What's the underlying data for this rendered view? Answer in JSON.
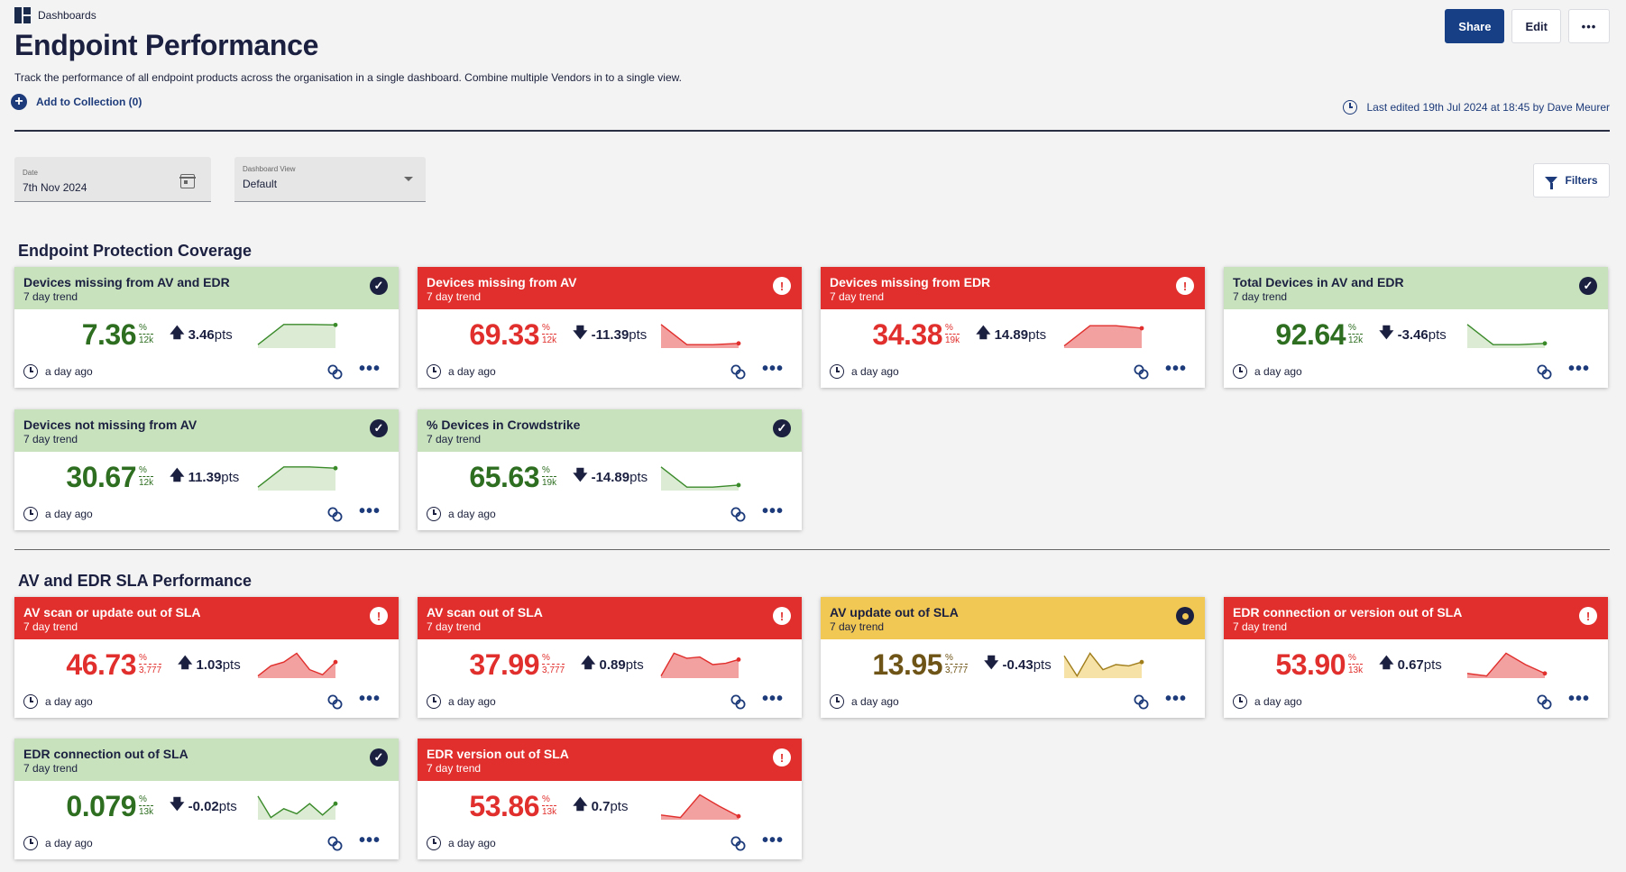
{
  "breadcrumb": "Dashboards",
  "title": "Endpoint Performance",
  "description": "Track the performance of all endpoint products across the organisation in a single dashboard. Combine multiple Vendors in to a single view.",
  "add_collection": "Add to Collection (0)",
  "buttons": {
    "share": "Share",
    "edit": "Edit",
    "more": "•••"
  },
  "last_edited": "Last edited 19th Jul 2024 at 18:45 by Dave Meurer",
  "date_field": {
    "label": "Date",
    "value": "7th Nov 2024"
  },
  "view_field": {
    "label": "Dashboard View",
    "value": "Default"
  },
  "filters_label": "Filters",
  "sections": [
    {
      "title": "Endpoint Protection Coverage"
    },
    {
      "title": "AV and EDR SLA Performance"
    }
  ],
  "card_common": {
    "subtitle": "7 day trend",
    "timestamp": "a day ago",
    "percent": "%",
    "pts": "pts",
    "more": "•••"
  },
  "cards": [
    {
      "title": "Devices missing from AV and EDR",
      "status": "ok",
      "value": "7.36",
      "denom": "12k",
      "delta": "3.46",
      "direction": "up",
      "spark": [
        0.1,
        0.9,
        0.9,
        0.88
      ]
    },
    {
      "title": "Devices missing from AV",
      "status": "bad",
      "value": "69.33",
      "denom": "12k",
      "delta": "-11.39",
      "direction": "down",
      "spark": [
        0.9,
        0.1,
        0.1,
        0.15
      ]
    },
    {
      "title": "Devices missing from EDR",
      "status": "bad",
      "value": "34.38",
      "denom": "19k",
      "delta": "14.89",
      "direction": "up",
      "spark": [
        0.05,
        0.85,
        0.85,
        0.75
      ]
    },
    {
      "title": "Total Devices in AV and EDR",
      "status": "ok",
      "value": "92.64",
      "denom": "12k",
      "delta": "-3.46",
      "direction": "down",
      "spark": [
        0.9,
        0.1,
        0.1,
        0.15
      ]
    },
    {
      "title": "Devices not missing from AV",
      "status": "ok",
      "value": "30.67",
      "denom": "12k",
      "delta": "11.39",
      "direction": "up",
      "spark": [
        0.1,
        0.9,
        0.9,
        0.85
      ]
    },
    {
      "title": "% Devices in Crowdstrike",
      "status": "ok",
      "value": "65.63",
      "denom": "19k",
      "delta": "-14.89",
      "direction": "down",
      "spark": [
        0.9,
        0.1,
        0.1,
        0.18
      ]
    },
    {
      "title": "AV scan or update out of SLA",
      "status": "bad",
      "value": "46.73",
      "denom": "3,777",
      "delta": "1.03",
      "direction": "up",
      "spark": [
        0.05,
        0.45,
        0.6,
        0.95,
        0.3,
        0.1,
        0.6
      ]
    },
    {
      "title": "AV scan out of SLA",
      "status": "bad",
      "value": "37.99",
      "denom": "3,777",
      "delta": "0.89",
      "direction": "up",
      "spark": [
        0.05,
        0.95,
        0.75,
        0.8,
        0.5,
        0.55,
        0.7
      ]
    },
    {
      "title": "AV update out of SLA",
      "status": "warn",
      "value": "13.95",
      "denom": "3,777",
      "delta": "-0.43",
      "direction": "down",
      "spark": [
        0.85,
        0.05,
        0.95,
        0.3,
        0.5,
        0.45,
        0.6
      ]
    },
    {
      "title": "EDR connection or version out of SLA",
      "status": "bad",
      "value": "53.90",
      "denom": "13k",
      "delta": "0.67",
      "direction": "up",
      "spark": [
        0.15,
        0.05,
        0.95,
        0.5,
        0.15
      ]
    },
    {
      "title": "EDR connection out of SLA",
      "status": "ok",
      "value": "0.079",
      "denom": "13k",
      "delta": "-0.02",
      "direction": "down",
      "spark": [
        0.9,
        0.05,
        0.4,
        0.2,
        0.6,
        0.15,
        0.6
      ]
    },
    {
      "title": "EDR version out of SLA",
      "status": "bad",
      "value": "53.86",
      "denom": "13k",
      "delta": "0.7",
      "direction": "up",
      "spark": [
        0.15,
        0.05,
        0.95,
        0.5,
        0.1
      ]
    }
  ],
  "colors": {
    "green": "#2e6e21",
    "red": "#e02f2c",
    "gold": "#6e5416",
    "header_navy": "#163f85"
  }
}
